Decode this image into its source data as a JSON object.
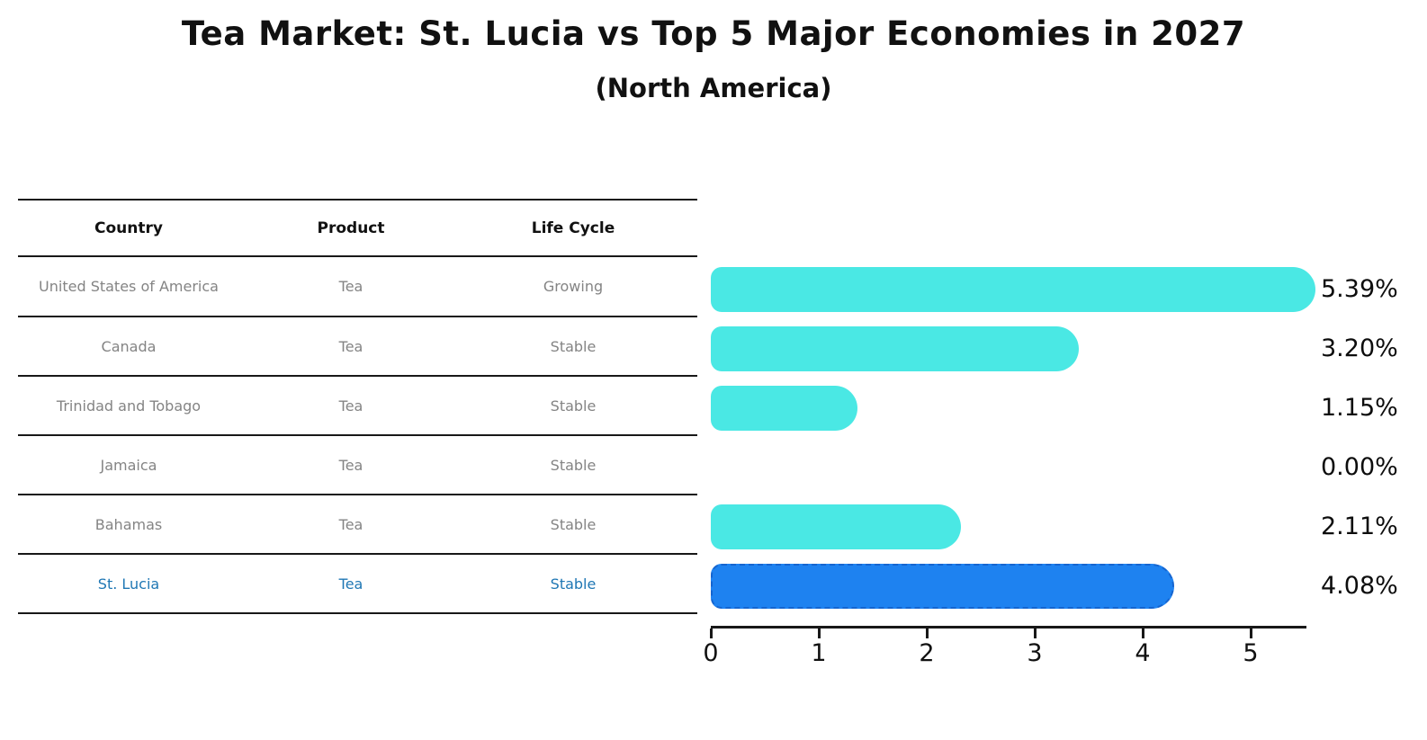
{
  "title": "Tea Market: St. Lucia vs Top 5 Major Economies in 2027",
  "subtitle": "(North America)",
  "table": {
    "headers": [
      "Country",
      "Product",
      "Life Cycle"
    ],
    "rows": [
      {
        "country": "United States of America",
        "product": "Tea",
        "life_cycle": "Growing",
        "highlight": false
      },
      {
        "country": "Canada",
        "product": "Tea",
        "life_cycle": "Stable",
        "highlight": false
      },
      {
        "country": "Trinidad and Tobago",
        "product": "Tea",
        "life_cycle": "Stable",
        "highlight": false
      },
      {
        "country": "Jamaica",
        "product": "Tea",
        "life_cycle": "Stable",
        "highlight": false
      },
      {
        "country": "Bahamas",
        "product": "Tea",
        "life_cycle": "Stable",
        "highlight": false
      },
      {
        "country": "St. Lucia",
        "product": "Tea",
        "life_cycle": "Stable",
        "highlight": true
      }
    ]
  },
  "chart_data": {
    "type": "bar",
    "orientation": "horizontal",
    "categories": [
      "United States of America",
      "Canada",
      "Trinidad and Tobago",
      "Jamaica",
      "Bahamas",
      "St. Lucia"
    ],
    "values": [
      5.39,
      3.2,
      1.15,
      0.0,
      2.11,
      4.08
    ],
    "value_labels": [
      "5.39%",
      "3.20%",
      "1.15%",
      "0.00%",
      "2.11%",
      "4.08%"
    ],
    "x_tick_labels": [
      "0",
      "1",
      "2",
      "3",
      "4",
      "5"
    ],
    "x_ticks": [
      0,
      1,
      2,
      3,
      4,
      5
    ],
    "xlim": [
      0,
      5.5
    ],
    "grid": false,
    "legend": "none",
    "highlight_index": 5,
    "title": "Tea Market: St. Lucia vs Top 5 Major Economies in 2027",
    "subtitle": "(North America)",
    "xlabel": "",
    "ylabel": ""
  },
  "colors": {
    "bar_color": "#4AE8E4",
    "highlight_bar_color": "#1E82F0",
    "highlight_border_color": "#1565D0",
    "highlight_text_color": "#1F77B4",
    "row_text_color": "#848484",
    "header_text_color": "#111111",
    "axis_color": "#181818"
  }
}
